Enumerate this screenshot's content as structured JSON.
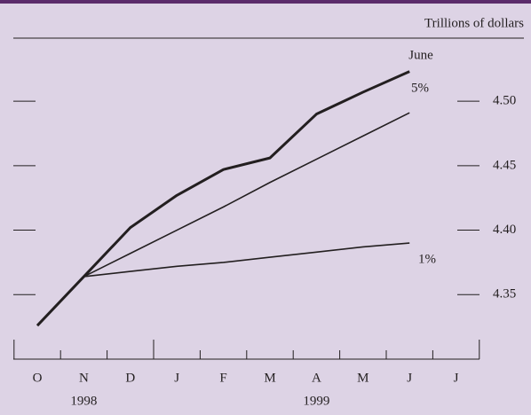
{
  "chart_data": {
    "type": "line",
    "y_axis_label": "Trillions of dollars",
    "categories": [
      "O",
      "N",
      "D",
      "J",
      "F",
      "M",
      "A",
      "M",
      "J",
      "J"
    ],
    "years": [
      "1998",
      "1999"
    ],
    "series": [
      {
        "color": "#231f20",
        "values": [
          4.326,
          4.364,
          4.402,
          4.427,
          4.447,
          4.456,
          4.49,
          4.507,
          4.523,
          null
        ]
      },
      {
        "name": "5%",
        "color": "#231f20",
        "values": [
          null,
          4.364,
          4.382,
          4.4,
          4.418,
          4.437,
          4.455,
          4.473,
          4.491,
          null
        ]
      },
      {
        "name": "1%",
        "color": "#231f20",
        "values": [
          null,
          4.364,
          4.368,
          4.372,
          4.375,
          4.379,
          4.383,
          4.387,
          4.39,
          null
        ]
      }
    ],
    "annotations": [
      "June"
    ],
    "ylim": [
      4.3,
      4.55
    ],
    "yticks": [
      4.35,
      {
        "value": 4.4,
        "label": "4.40"
      },
      4.45,
      {
        "value": 4.5,
        "label": "4.50"
      }
    ]
  }
}
